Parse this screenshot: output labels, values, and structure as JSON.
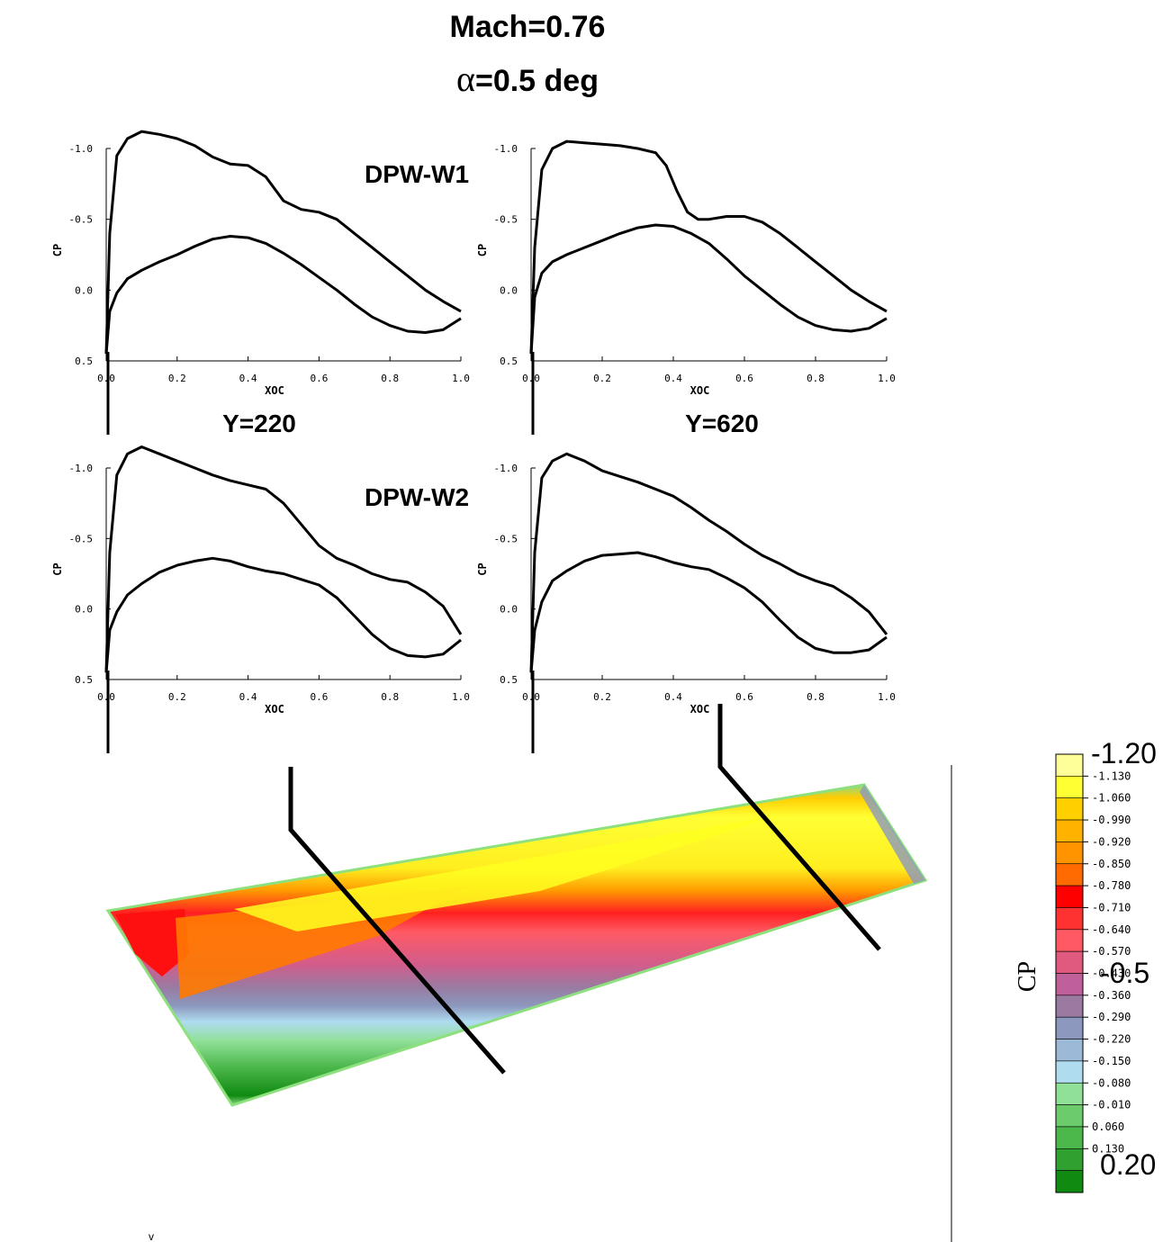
{
  "title": {
    "line1": "Mach=0.76",
    "line2_symbol": "α",
    "line2_rest": "=0.5 deg"
  },
  "row_labels": [
    "DPW-W1",
    "DPW-W2"
  ],
  "column_labels": [
    "Y=220",
    "Y=620"
  ],
  "contour_legend": {
    "title": "CP",
    "big_labels": [
      "-1.20",
      "-0.5",
      "0.20"
    ],
    "levels": [
      "-1.130",
      "-1.060",
      "-0.990",
      "-0.920",
      "-0.850",
      "-0.780",
      "-0.710",
      "-0.640",
      "-0.570",
      "-0.430",
      "-0.360",
      "-0.290",
      "-0.220",
      "-0.150",
      "-0.080",
      "-0.010",
      "0.060",
      "0.130"
    ],
    "colors": [
      "#ffff99",
      "#ffff33",
      "#ffd000",
      "#ffb300",
      "#ff9400",
      "#ff6b00",
      "#ff0000",
      "#ff3232",
      "#ff5a64",
      "#e05a80",
      "#c0609a",
      "#9a7aa0",
      "#8c98be",
      "#9cbad8",
      "#b0dcf0",
      "#90e098",
      "#6ccc6c",
      "#4cb84c",
      "#30a030",
      "#108a10"
    ]
  },
  "stray_mark": "v",
  "chart_data": [
    {
      "type": "line",
      "panel": "DPW-W1 / Y=220",
      "xlabel": "XOC",
      "ylabel": "CP",
      "xlim": [
        0,
        1
      ],
      "ylim": [
        0.5,
        -1.0
      ],
      "y_inverted": true,
      "xticks": [
        "0.0",
        "0.2",
        "0.4",
        "0.6",
        "0.8",
        "1.0"
      ],
      "yticks": [
        "-1.0",
        "-0.5",
        "0.0",
        "0.5"
      ],
      "series": [
        {
          "x": [
            0.0,
            0.01,
            0.03,
            0.06,
            0.1,
            0.15,
            0.2,
            0.25,
            0.3,
            0.35,
            0.4,
            0.45,
            0.5,
            0.55,
            0.6,
            0.65,
            0.7,
            0.75,
            0.8,
            0.85,
            0.9,
            0.95,
            1.0
          ],
          "y": [
            0.45,
            -0.4,
            -0.95,
            -1.07,
            -1.12,
            -1.1,
            -1.07,
            -1.02,
            -0.94,
            -0.89,
            -0.88,
            -0.8,
            -0.63,
            -0.57,
            -0.55,
            -0.5,
            -0.4,
            -0.3,
            -0.2,
            -0.1,
            0.0,
            0.08,
            0.15
          ]
        },
        {
          "x": [
            0.0,
            0.01,
            0.03,
            0.06,
            0.1,
            0.15,
            0.2,
            0.25,
            0.3,
            0.35,
            0.4,
            0.45,
            0.5,
            0.55,
            0.6,
            0.65,
            0.7,
            0.75,
            0.8,
            0.85,
            0.9,
            0.95,
            1.0
          ],
          "y": [
            0.45,
            0.15,
            0.02,
            -0.08,
            -0.14,
            -0.2,
            -0.25,
            -0.31,
            -0.36,
            -0.38,
            -0.37,
            -0.33,
            -0.26,
            -0.18,
            -0.09,
            0.0,
            0.1,
            0.19,
            0.25,
            0.29,
            0.3,
            0.28,
            0.2
          ]
        }
      ]
    },
    {
      "type": "line",
      "panel": "DPW-W1 / Y=620",
      "xlabel": "XOC",
      "ylabel": "CP",
      "xlim": [
        0,
        1
      ],
      "ylim": [
        0.5,
        -1.0
      ],
      "y_inverted": true,
      "xticks": [
        "0.0",
        "0.2",
        "0.4",
        "0.6",
        "0.8",
        "1.0"
      ],
      "yticks": [
        "-1.0",
        "-0.5",
        "0.0",
        "0.5"
      ],
      "series": [
        {
          "x": [
            0.0,
            0.01,
            0.03,
            0.06,
            0.1,
            0.15,
            0.2,
            0.25,
            0.3,
            0.35,
            0.38,
            0.41,
            0.44,
            0.47,
            0.5,
            0.55,
            0.6,
            0.65,
            0.7,
            0.75,
            0.8,
            0.85,
            0.9,
            0.95,
            1.0
          ],
          "y": [
            0.45,
            -0.3,
            -0.85,
            -1.0,
            -1.05,
            -1.04,
            -1.03,
            -1.02,
            -1.0,
            -0.97,
            -0.88,
            -0.7,
            -0.55,
            -0.5,
            -0.5,
            -0.52,
            -0.52,
            -0.48,
            -0.4,
            -0.3,
            -0.2,
            -0.1,
            0.0,
            0.08,
            0.15
          ]
        },
        {
          "x": [
            0.0,
            0.01,
            0.03,
            0.06,
            0.1,
            0.15,
            0.2,
            0.25,
            0.3,
            0.35,
            0.4,
            0.45,
            0.5,
            0.55,
            0.6,
            0.65,
            0.7,
            0.75,
            0.8,
            0.85,
            0.9,
            0.95,
            1.0
          ],
          "y": [
            0.45,
            0.05,
            -0.12,
            -0.2,
            -0.25,
            -0.3,
            -0.35,
            -0.4,
            -0.44,
            -0.46,
            -0.45,
            -0.4,
            -0.33,
            -0.22,
            -0.1,
            0.0,
            0.1,
            0.19,
            0.25,
            0.28,
            0.29,
            0.27,
            0.2
          ]
        }
      ]
    },
    {
      "type": "line",
      "panel": "DPW-W2 / Y=220",
      "xlabel": "XOC",
      "ylabel": "CP",
      "xlim": [
        0,
        1
      ],
      "ylim": [
        0.5,
        -1.0
      ],
      "y_inverted": true,
      "xticks": [
        "0.0",
        "0.2",
        "0.4",
        "0.6",
        "0.8",
        "1.0"
      ],
      "yticks": [
        "-1.0",
        "-0.5",
        "0.0",
        "0.5"
      ],
      "series": [
        {
          "x": [
            0.0,
            0.01,
            0.03,
            0.06,
            0.1,
            0.15,
            0.2,
            0.25,
            0.3,
            0.35,
            0.4,
            0.45,
            0.5,
            0.55,
            0.6,
            0.65,
            0.7,
            0.75,
            0.8,
            0.85,
            0.9,
            0.95,
            1.0
          ],
          "y": [
            0.45,
            -0.4,
            -0.95,
            -1.1,
            -1.15,
            -1.1,
            -1.05,
            -1.0,
            -0.95,
            -0.91,
            -0.88,
            -0.85,
            -0.75,
            -0.6,
            -0.45,
            -0.36,
            -0.31,
            -0.25,
            -0.21,
            -0.19,
            -0.12,
            -0.02,
            0.18
          ]
        },
        {
          "x": [
            0.0,
            0.01,
            0.03,
            0.06,
            0.1,
            0.15,
            0.2,
            0.25,
            0.3,
            0.35,
            0.4,
            0.45,
            0.5,
            0.55,
            0.6,
            0.65,
            0.7,
            0.75,
            0.8,
            0.85,
            0.9,
            0.95,
            1.0
          ],
          "y": [
            0.45,
            0.15,
            0.02,
            -0.1,
            -0.18,
            -0.26,
            -0.31,
            -0.34,
            -0.36,
            -0.34,
            -0.3,
            -0.27,
            -0.25,
            -0.21,
            -0.17,
            -0.08,
            0.05,
            0.18,
            0.28,
            0.33,
            0.34,
            0.32,
            0.22
          ]
        }
      ]
    },
    {
      "type": "line",
      "panel": "DPW-W2 / Y=620",
      "xlabel": "XOC",
      "ylabel": "CP",
      "xlim": [
        0,
        1
      ],
      "ylim": [
        0.5,
        -1.0
      ],
      "y_inverted": true,
      "xticks": [
        "0.0",
        "0.2",
        "0.4",
        "0.6",
        "0.8",
        "1.0"
      ],
      "yticks": [
        "-1.0",
        "-0.5",
        "0.0",
        "0.5"
      ],
      "series": [
        {
          "x": [
            0.0,
            0.01,
            0.03,
            0.06,
            0.1,
            0.15,
            0.2,
            0.25,
            0.3,
            0.35,
            0.4,
            0.45,
            0.5,
            0.55,
            0.6,
            0.65,
            0.7,
            0.75,
            0.8,
            0.85,
            0.9,
            0.95,
            1.0
          ],
          "y": [
            0.45,
            -0.4,
            -0.93,
            -1.05,
            -1.1,
            -1.05,
            -0.98,
            -0.94,
            -0.9,
            -0.85,
            -0.8,
            -0.72,
            -0.63,
            -0.55,
            -0.46,
            -0.38,
            -0.32,
            -0.25,
            -0.2,
            -0.16,
            -0.08,
            0.02,
            0.18
          ]
        },
        {
          "x": [
            0.0,
            0.01,
            0.03,
            0.06,
            0.1,
            0.15,
            0.2,
            0.25,
            0.3,
            0.35,
            0.4,
            0.45,
            0.5,
            0.55,
            0.6,
            0.65,
            0.7,
            0.75,
            0.8,
            0.85,
            0.9,
            0.95,
            1.0
          ],
          "y": [
            0.45,
            0.15,
            -0.05,
            -0.2,
            -0.27,
            -0.34,
            -0.38,
            -0.39,
            -0.4,
            -0.37,
            -0.33,
            -0.3,
            -0.28,
            -0.22,
            -0.15,
            -0.05,
            0.08,
            0.2,
            0.28,
            0.31,
            0.31,
            0.29,
            0.2
          ]
        }
      ]
    }
  ]
}
